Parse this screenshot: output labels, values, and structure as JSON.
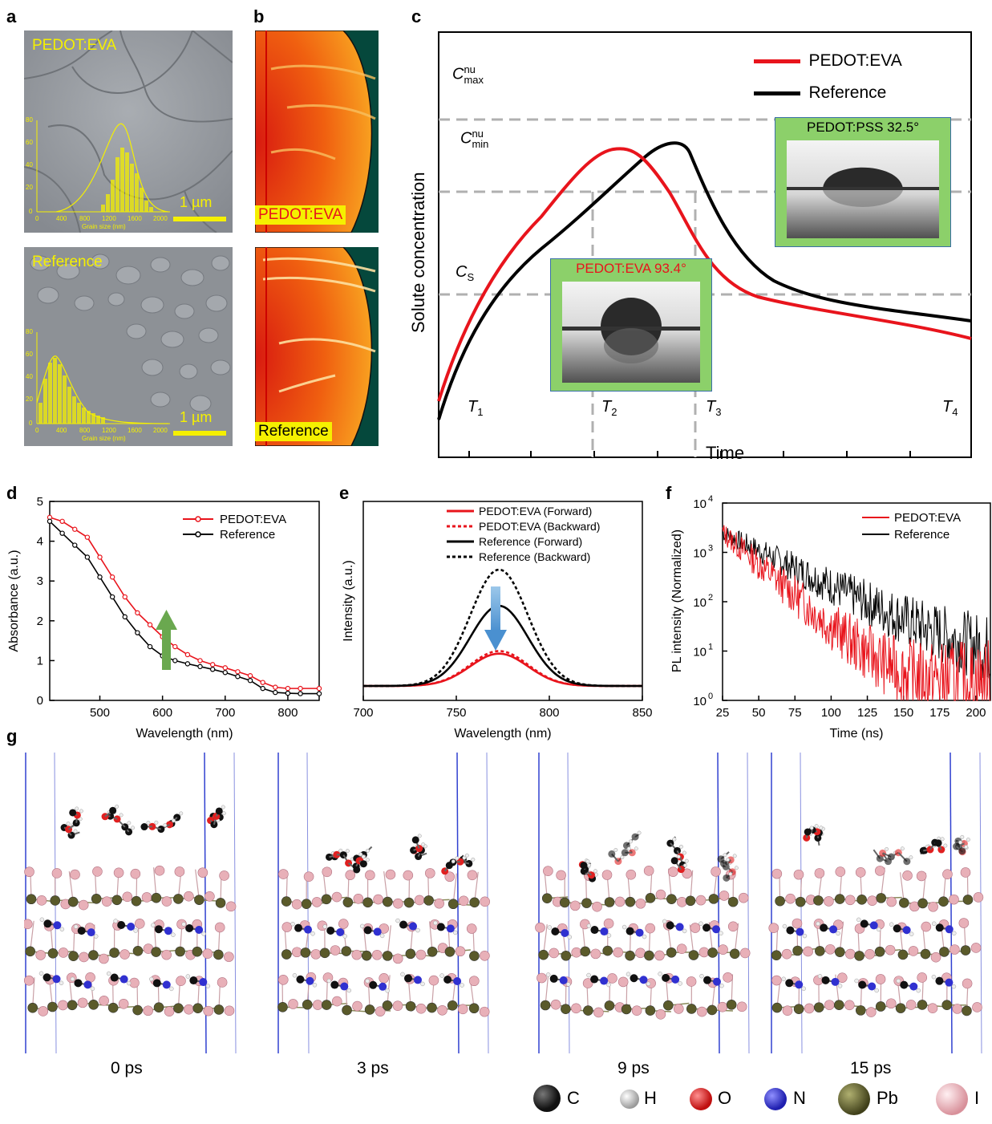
{
  "panels": {
    "a": "a",
    "b": "b",
    "c": "c",
    "d": "d",
    "e": "e",
    "f": "f",
    "g": "g"
  },
  "panel_a": {
    "top_label": "PEDOT:EVA",
    "bottom_label": "Reference",
    "scalebar": "1 µm",
    "hist_xlabel": "Grain size (nm)",
    "hist_xticks": [
      "0",
      "400",
      "800",
      "1200",
      "1600",
      "2000"
    ],
    "hist_yticks": [
      "0",
      "20",
      "40",
      "60",
      "80"
    ]
  },
  "panel_b": {
    "top_label": "PEDOT:EVA",
    "bottom_label": "Reference"
  },
  "chart_data": [
    {
      "panel": "c",
      "type": "line",
      "xlabel": "Time",
      "ylabel": "Solute concentration",
      "level_labels": [
        {
          "base": "C",
          "sup": "nu",
          "sub": "max"
        },
        {
          "base": "C",
          "sup": "nu",
          "sub": "min"
        },
        {
          "base": "C",
          "sup": "",
          "sub": "S"
        }
      ],
      "time_labels": [
        {
          "base": "T",
          "sub": "1"
        },
        {
          "base": "T",
          "sub": "2"
        },
        {
          "base": "T",
          "sub": "3"
        },
        {
          "base": "T",
          "sub": "4"
        }
      ],
      "series": [
        {
          "name": "PEDOT:EVA",
          "color": "#e8141c"
        },
        {
          "name": "Reference",
          "color": "#000000"
        }
      ],
      "insets": [
        "PEDOT:PSS 32.5°",
        "PEDOT:EVA 93.4°"
      ]
    },
    {
      "panel": "d",
      "type": "line",
      "xlabel": "Wavelength (nm)",
      "ylabel": "Absorbance (a.u.)",
      "xlim": [
        420,
        850
      ],
      "ylim": [
        0,
        5
      ],
      "xticks": [
        "500",
        "600",
        "700",
        "800"
      ],
      "yticks": [
        "0",
        "1",
        "2",
        "3",
        "4",
        "5"
      ],
      "series": [
        {
          "name": "PEDOT:EVA",
          "color": "#e8141c",
          "x": [
            420,
            440,
            460,
            480,
            500,
            520,
            540,
            560,
            580,
            600,
            620,
            640,
            660,
            680,
            700,
            720,
            740,
            760,
            780,
            800,
            820,
            850
          ],
          "y": [
            4.6,
            4.5,
            4.3,
            4.1,
            3.6,
            3.1,
            2.6,
            2.2,
            1.9,
            1.6,
            1.35,
            1.15,
            1.0,
            0.9,
            0.82,
            0.72,
            0.62,
            0.45,
            0.33,
            0.3,
            0.3,
            0.3
          ]
        },
        {
          "name": "Reference",
          "color": "#000000",
          "x": [
            420,
            440,
            460,
            480,
            500,
            520,
            540,
            560,
            580,
            600,
            620,
            640,
            660,
            680,
            700,
            720,
            740,
            760,
            780,
            800,
            820,
            850
          ],
          "y": [
            4.5,
            4.2,
            3.9,
            3.6,
            3.1,
            2.6,
            2.1,
            1.7,
            1.35,
            1.12,
            1.0,
            0.92,
            0.85,
            0.78,
            0.7,
            0.6,
            0.5,
            0.3,
            0.2,
            0.18,
            0.17,
            0.17
          ]
        }
      ]
    },
    {
      "panel": "e",
      "type": "line",
      "xlabel": "Wavelength (nm)",
      "ylabel": "Intensity (a.u.)",
      "xlim": [
        700,
        850
      ],
      "xticks": [
        "700",
        "750",
        "800",
        "850"
      ],
      "peak_nm": 773,
      "series": [
        {
          "name": "PEDOT:EVA (Forward)",
          "color": "#e8141c",
          "dash": false,
          "amplitude": 0.25
        },
        {
          "name": "PEDOT:EVA (Backward)",
          "color": "#e8141c",
          "dash": true,
          "amplitude": 0.27
        },
        {
          "name": "Reference (Forward)",
          "color": "#000000",
          "dash": false,
          "amplitude": 0.62
        },
        {
          "name": "Reference (Backward)",
          "color": "#000000",
          "dash": true,
          "amplitude": 0.9
        }
      ]
    },
    {
      "panel": "f",
      "type": "line",
      "xlabel": "Time (ns)",
      "ylabel": "PL intensity (Normalized)",
      "xlim": [
        25,
        210
      ],
      "ylim_log10": [
        0,
        4
      ],
      "xticks": [
        "25",
        "50",
        "75",
        "100",
        "125",
        "150",
        "175",
        "200"
      ],
      "yticks": [
        {
          "base": "10",
          "exp": "0"
        },
        {
          "base": "10",
          "exp": "1"
        },
        {
          "base": "10",
          "exp": "2"
        },
        {
          "base": "10",
          "exp": "3"
        },
        {
          "base": "10",
          "exp": "4"
        }
      ],
      "series": [
        {
          "name": "PEDOT:EVA",
          "color": "#e8141c"
        },
        {
          "name": "Reference",
          "color": "#000000"
        }
      ]
    }
  ],
  "panel_g": {
    "times": [
      "0 ps",
      "3 ps",
      "9 ps",
      "15 ps"
    ],
    "atoms": [
      {
        "symbol": "C",
        "color": "#111111"
      },
      {
        "symbol": "H",
        "color": "#d0d0d0"
      },
      {
        "symbol": "O",
        "color": "#e02020"
      },
      {
        "symbol": "N",
        "color": "#3030d0"
      },
      {
        "symbol": "Pb",
        "color": "#5a5a2a"
      },
      {
        "symbol": "I",
        "color": "#e8b0b8"
      }
    ]
  }
}
